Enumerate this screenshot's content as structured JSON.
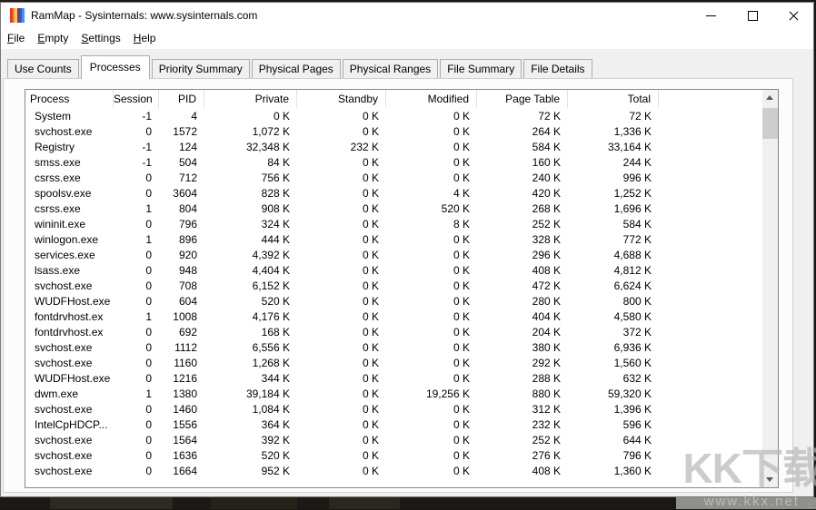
{
  "window": {
    "title": "RamMap - Sysinternals: www.sysinternals.com",
    "icon": "rammap-color-stripes-icon",
    "icon_colors": [
      "#e23a2e",
      "#f08c1d",
      "#f2d43c",
      "#8a2c90",
      "#3c53d8",
      "#2e9fe6"
    ],
    "controls": [
      "minimize-icon",
      "maximize-icon",
      "close-icon"
    ]
  },
  "menu": {
    "items": [
      "File",
      "Empty",
      "Settings",
      "Help"
    ]
  },
  "tabs": {
    "selected": "Processes",
    "items": [
      "Use Counts",
      "Processes",
      "Priority Summary",
      "Physical Pages",
      "Physical Ranges",
      "File Summary",
      "File Details"
    ]
  },
  "table": {
    "columns": [
      "Process",
      "Session",
      "PID",
      "Private",
      "Standby",
      "Modified",
      "Page Table",
      "Total"
    ],
    "rows": [
      [
        "System",
        "-1",
        "4",
        "0 K",
        "0 K",
        "0 K",
        "72 K",
        "72 K"
      ],
      [
        "svchost.exe",
        "0",
        "1572",
        "1,072 K",
        "0 K",
        "0 K",
        "264 K",
        "1,336 K"
      ],
      [
        "Registry",
        "-1",
        "124",
        "32,348 K",
        "232 K",
        "0 K",
        "584 K",
        "33,164 K"
      ],
      [
        "smss.exe",
        "-1",
        "504",
        "84 K",
        "0 K",
        "0 K",
        "160 K",
        "244 K"
      ],
      [
        "csrss.exe",
        "0",
        "712",
        "756 K",
        "0 K",
        "0 K",
        "240 K",
        "996 K"
      ],
      [
        "spoolsv.exe",
        "0",
        "3604",
        "828 K",
        "0 K",
        "4 K",
        "420 K",
        "1,252 K"
      ],
      [
        "csrss.exe",
        "1",
        "804",
        "908 K",
        "0 K",
        "520 K",
        "268 K",
        "1,696 K"
      ],
      [
        "wininit.exe",
        "0",
        "796",
        "324 K",
        "0 K",
        "8 K",
        "252 K",
        "584 K"
      ],
      [
        "winlogon.exe",
        "1",
        "896",
        "444 K",
        "0 K",
        "0 K",
        "328 K",
        "772 K"
      ],
      [
        "services.exe",
        "0",
        "920",
        "4,392 K",
        "0 K",
        "0 K",
        "296 K",
        "4,688 K"
      ],
      [
        "lsass.exe",
        "0",
        "948",
        "4,404 K",
        "0 K",
        "0 K",
        "408 K",
        "4,812 K"
      ],
      [
        "svchost.exe",
        "0",
        "708",
        "6,152 K",
        "0 K",
        "0 K",
        "472 K",
        "6,624 K"
      ],
      [
        "WUDFHost.exe",
        "0",
        "604",
        "520 K",
        "0 K",
        "0 K",
        "280 K",
        "800 K"
      ],
      [
        "fontdrvhost.ex",
        "1",
        "1008",
        "4,176 K",
        "0 K",
        "0 K",
        "404 K",
        "4,580 K"
      ],
      [
        "fontdrvhost.ex",
        "0",
        "692",
        "168 K",
        "0 K",
        "0 K",
        "204 K",
        "372 K"
      ],
      [
        "svchost.exe",
        "0",
        "1112",
        "6,556 K",
        "0 K",
        "0 K",
        "380 K",
        "6,936 K"
      ],
      [
        "svchost.exe",
        "0",
        "1160",
        "1,268 K",
        "0 K",
        "0 K",
        "292 K",
        "1,560 K"
      ],
      [
        "WUDFHost.exe",
        "0",
        "1216",
        "344 K",
        "0 K",
        "0 K",
        "288 K",
        "632 K"
      ],
      [
        "dwm.exe",
        "1",
        "1380",
        "39,184 K",
        "0 K",
        "19,256 K",
        "880 K",
        "59,320 K"
      ],
      [
        "svchost.exe",
        "0",
        "1460",
        "1,084 K",
        "0 K",
        "0 K",
        "312 K",
        "1,396 K"
      ],
      [
        "IntelCpHDCP...",
        "0",
        "1556",
        "364 K",
        "0 K",
        "0 K",
        "232 K",
        "596 K"
      ],
      [
        "svchost.exe",
        "0",
        "1564",
        "392 K",
        "0 K",
        "0 K",
        "252 K",
        "644 K"
      ],
      [
        "svchost.exe",
        "0",
        "1636",
        "520 K",
        "0 K",
        "0 K",
        "276 K",
        "796 K"
      ],
      [
        "svchost.exe",
        "0",
        "1664",
        "952 K",
        "0 K",
        "0 K",
        "408 K",
        "1,360 K"
      ]
    ]
  },
  "scrollbar": {
    "up": "scroll-up-icon",
    "down": "scroll-down-icon"
  },
  "watermark": {
    "title": "KK下载",
    "url": "www.kkx.net"
  }
}
